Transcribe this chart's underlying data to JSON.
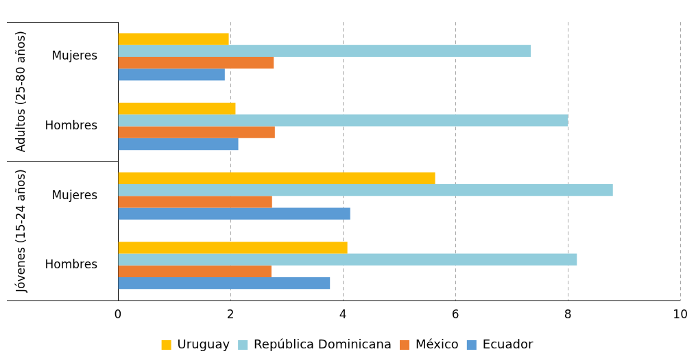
{
  "chart_data": {
    "type": "bar",
    "orientation": "horizontal",
    "categories": [
      "Mujeres",
      "Hombres",
      "Mujeres",
      "Hombres"
    ],
    "series": [
      {
        "name": "Uruguay",
        "color": "#ffc000",
        "values": [
          1.97,
          2.09,
          5.64,
          4.08
        ]
      },
      {
        "name": "República Dominicana",
        "color": "#92cddc",
        "values": [
          7.34,
          8.0,
          8.8,
          8.16
        ]
      },
      {
        "name": "México",
        "color": "#ed7d31",
        "values": [
          2.77,
          2.79,
          2.74,
          2.73
        ]
      },
      {
        "name": "Ecuador",
        "color": "#5b9bd5",
        "values": [
          1.9,
          2.14,
          4.13,
          3.77
        ]
      }
    ],
    "xlim": [
      0,
      10
    ],
    "xticks": [
      0,
      2,
      4,
      6,
      8,
      10
    ],
    "grid": "x",
    "legend": "bottom",
    "annotations": [
      "Adultos (25-80 años)",
      "Jóvenes (15-24 años)"
    ]
  }
}
